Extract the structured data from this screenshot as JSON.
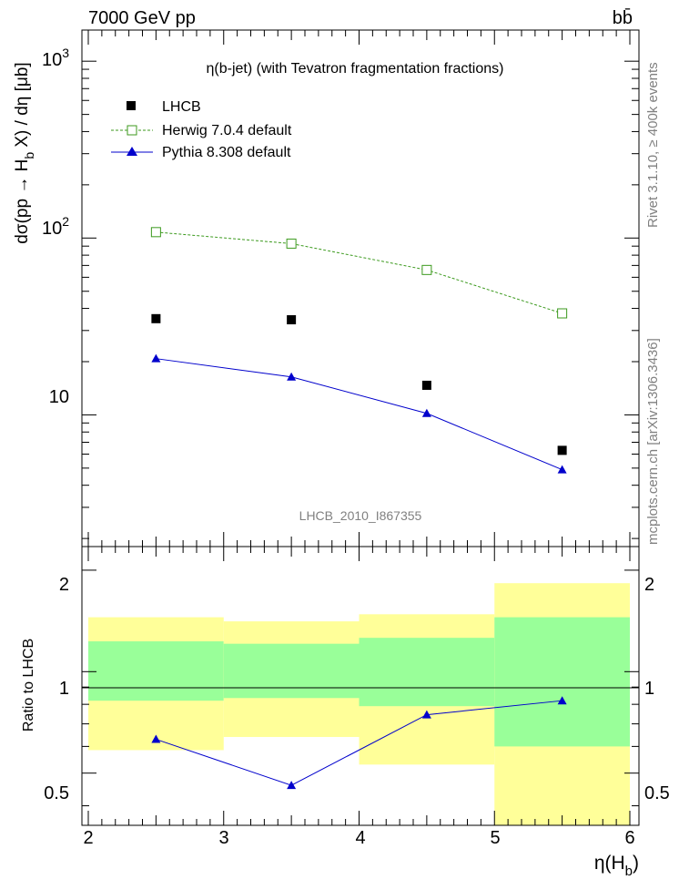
{
  "header": {
    "left": "7000 GeV pp",
    "right": "bb̄"
  },
  "side_labels": {
    "top": "Rivet 3.1.10, ≥ 400k events",
    "bottom": "mcplots.cern.ch [arXiv:1306.3436]"
  },
  "colors": {
    "data": "#000000",
    "herwig": "#3c9a1e",
    "pythia": "#0000cc",
    "band_inner": "#99ff99",
    "band_outer": "#ffff99",
    "watermark": "#808080"
  },
  "chart_data": [
    {
      "type": "scatter",
      "panel": "main",
      "title": "η(b-jet) (with Tevatron fragmentation fractions)",
      "ylabel": "dσ(pp → H_b X) / dη [μb]",
      "watermark": "LHCB_2010_I867355",
      "yscale": "log",
      "xlim": [
        2,
        6
      ],
      "ylim": [
        1.8,
        1500
      ],
      "ytick_labels": [
        "10",
        "10^2",
        "10^3"
      ],
      "x": [
        2.5,
        3.5,
        4.5,
        5.5
      ],
      "x_bins": [
        [
          2,
          3
        ],
        [
          3,
          4
        ],
        [
          4,
          5
        ],
        [
          5,
          6
        ]
      ],
      "legend_position": "top-left",
      "series": [
        {
          "name": "LHCB",
          "style": "marker-square",
          "values": [
            35,
            34.5,
            14.7,
            6.3
          ]
        },
        {
          "name": "Herwig 7.0.4 default",
          "style": "dashed-open-square",
          "values": [
            108,
            93,
            66,
            37.5
          ]
        },
        {
          "name": "Pythia 8.308 default",
          "style": "solid-triangle",
          "values": [
            20.8,
            16.4,
            10.2,
            4.9
          ]
        }
      ]
    },
    {
      "type": "line",
      "panel": "ratio",
      "ylabel": "Ratio to LHCB",
      "xlabel": "η(H_b)",
      "xlim": [
        2,
        6
      ],
      "ylim": [
        0.35,
        2.35
      ],
      "xtick_labels": [
        "2",
        "3",
        "4",
        "5",
        "6"
      ],
      "ytick_labels": [
        "0.5",
        "1",
        "2"
      ],
      "bins": [
        [
          2,
          3
        ],
        [
          3,
          4
        ],
        [
          4,
          5
        ],
        [
          5,
          6
        ]
      ],
      "inner_band": [
        [
          0.82,
          1.23
        ],
        [
          0.835,
          1.21
        ],
        [
          0.79,
          1.26
        ],
        [
          0.6,
          1.45
        ]
      ],
      "outer_band": [
        [
          0.585,
          1.45
        ],
        [
          0.64,
          1.41
        ],
        [
          0.53,
          1.48
        ],
        [
          0.35,
          1.83
        ]
      ],
      "series": [
        {
          "name": "Pythia 8.308 default",
          "x": [
            2.5,
            3.5,
            4.5,
            5.5
          ],
          "values": [
            0.63,
            0.46,
            0.745,
            0.82
          ]
        }
      ]
    }
  ]
}
